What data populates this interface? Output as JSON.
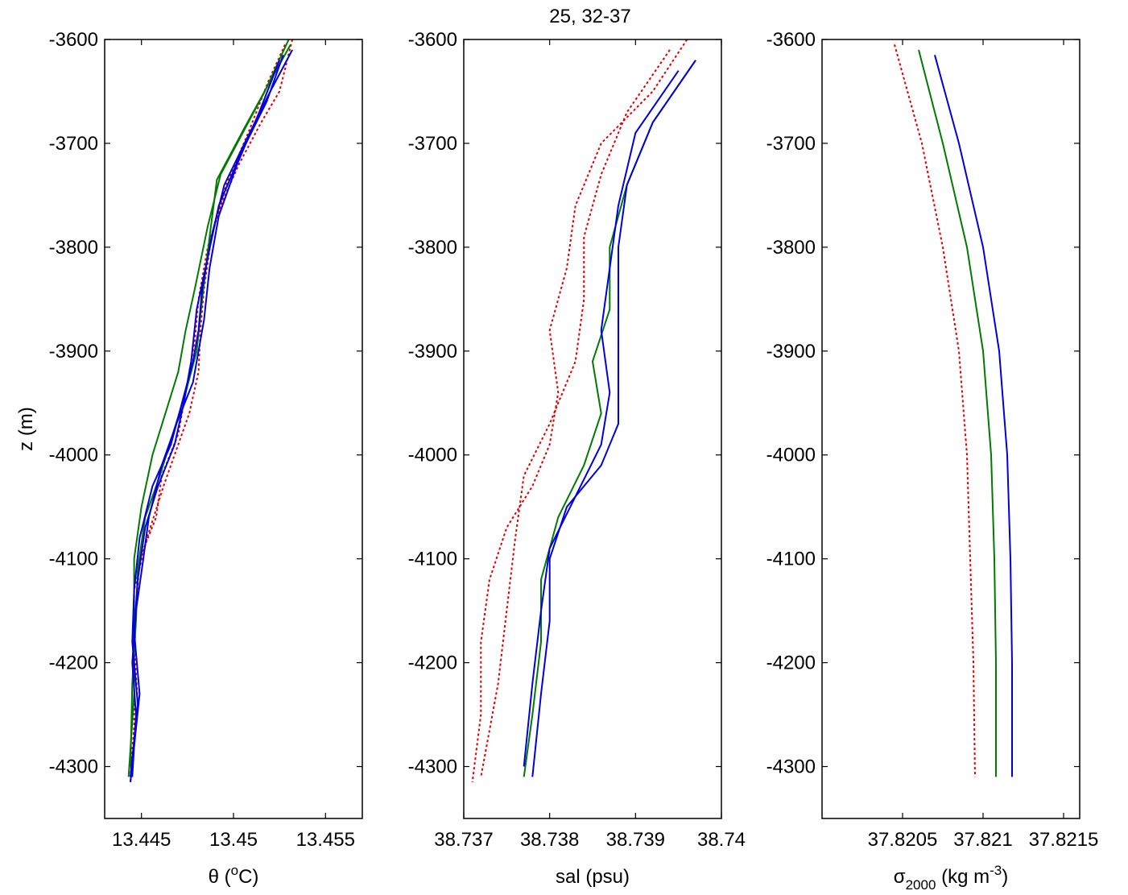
{
  "figure": {
    "title": "25, 32-37"
  },
  "chart_data": [
    {
      "type": "line",
      "panel": "temperature",
      "xlabel": "θ (°C)",
      "xlabel_parts": {
        "symbol": "θ (",
        "sup": "o",
        "tail": "C)"
      },
      "ylabel": "z (m)",
      "xlim": [
        13.443,
        13.457
      ],
      "ylim": [
        -4350,
        -3600
      ],
      "xticks": [
        13.445,
        13.45,
        13.455
      ],
      "xtick_labels": [
        "13.445",
        "13.45",
        "13.455"
      ],
      "yticks": [
        -3600,
        -3700,
        -3800,
        -3900,
        -4000,
        -4100,
        -4200,
        -4300
      ],
      "ytick_labels": [
        "-3600",
        "-3700",
        "-3800",
        "-3900",
        "-4000",
        "-4100",
        "-4200",
        "-4300"
      ],
      "grid": false,
      "series": [
        {
          "color": "#dd0000",
          "style": "dotted",
          "x": [
            13.4532,
            13.4525,
            13.4515,
            13.4503,
            13.4493,
            13.4486,
            13.4481,
            13.4479,
            13.4477,
            13.4474,
            13.447,
            13.4461,
            13.4458,
            13.4449,
            13.4447,
            13.4446,
            13.4446,
            13.4444
          ],
          "y": [
            -3600,
            -3650,
            -3680,
            -3720,
            -3760,
            -3800,
            -3850,
            -3890,
            -3910,
            -3940,
            -3980,
            -4020,
            -4060,
            -4100,
            -4150,
            -4200,
            -4260,
            -4310
          ]
        },
        {
          "color": "#dd0000",
          "style": "dotted",
          "x": [
            13.4528,
            13.4519,
            13.4508,
            13.4496,
            13.4488,
            13.4484,
            13.4482,
            13.4481,
            13.4476,
            13.447,
            13.4462,
            13.4453,
            13.4446,
            13.4446,
            13.4448,
            13.4444
          ],
          "y": [
            -3605,
            -3640,
            -3690,
            -3740,
            -3790,
            -3840,
            -3880,
            -3920,
            -3960,
            -3990,
            -4030,
            -4080,
            -4130,
            -4180,
            -4240,
            -4315
          ]
        },
        {
          "color": "#007a00",
          "style": "solid",
          "x": [
            13.453,
            13.4517,
            13.4505,
            13.4493,
            13.4486,
            13.4479,
            13.4474,
            13.447,
            13.4463,
            13.4456,
            13.445,
            13.4446,
            13.4446,
            13.4446,
            13.4443
          ],
          "y": [
            -3600,
            -3650,
            -3690,
            -3730,
            -3780,
            -3840,
            -3880,
            -3920,
            -3960,
            -4000,
            -4050,
            -4100,
            -4150,
            -4230,
            -4310
          ]
        },
        {
          "color": "#007a00",
          "style": "solid",
          "x": [
            13.4531,
            13.452,
            13.4506,
            13.4491,
            13.4487,
            13.4483,
            13.448,
            13.4474,
            13.4467,
            13.446,
            13.4452,
            13.4448,
            13.4447,
            13.4445,
            13.4444
          ],
          "y": [
            -3605,
            -3640,
            -3685,
            -3735,
            -3790,
            -3850,
            -3900,
            -3940,
            -3980,
            -4020,
            -4060,
            -4110,
            -4160,
            -4220,
            -4300
          ]
        },
        {
          "color": "#0000dd",
          "style": "solid",
          "x": [
            13.4532,
            13.452,
            13.4506,
            13.4495,
            13.4488,
            13.4483,
            13.4481,
            13.4478,
            13.4472,
            13.4466,
            13.4456,
            13.4449,
            13.4446,
            13.4445,
            13.4448,
            13.4444
          ],
          "y": [
            -3610,
            -3650,
            -3700,
            -3740,
            -3790,
            -3840,
            -3880,
            -3910,
            -3950,
            -3990,
            -4030,
            -4080,
            -4130,
            -4180,
            -4240,
            -4310
          ]
        },
        {
          "color": "#0000dd",
          "style": "solid",
          "x": [
            13.4527,
            13.4518,
            13.4504,
            13.4492,
            13.4486,
            13.448,
            13.4477,
            13.4473,
            13.4468,
            13.4459,
            13.4452,
            13.4448,
            13.4446,
            13.4449,
            13.4444
          ],
          "y": [
            -3615,
            -3660,
            -3710,
            -3760,
            -3810,
            -3860,
            -3910,
            -3950,
            -3990,
            -4030,
            -4070,
            -4120,
            -4170,
            -4230,
            -4315
          ]
        },
        {
          "color": "#0000dd",
          "style": "solid",
          "x": [
            13.4525,
            13.4514,
            13.4502,
            13.4492,
            13.4487,
            13.4484,
            13.4478,
            13.4469,
            13.4461,
            13.4454,
            13.4451,
            13.4447,
            13.4445,
            13.4447,
            13.4445
          ],
          "y": [
            -3620,
            -3670,
            -3720,
            -3770,
            -3820,
            -3870,
            -3930,
            -3970,
            -4010,
            -4060,
            -4100,
            -4150,
            -4200,
            -4250,
            -4310
          ]
        }
      ]
    },
    {
      "type": "line",
      "panel": "salinity",
      "xlabel": "sal (psu)",
      "xlim": [
        38.737,
        38.74
      ],
      "ylim": [
        -4350,
        -3600
      ],
      "xticks": [
        38.737,
        38.738,
        38.739,
        38.74
      ],
      "xtick_labels": [
        "38.737",
        "38.738",
        "38.739",
        "38.74"
      ],
      "yticks": [
        -3600,
        -3700,
        -3800,
        -3900,
        -4000,
        -4100,
        -4200,
        -4300
      ],
      "ytick_labels": [
        "-3600",
        "-3700",
        "-3800",
        "-3900",
        "-4000",
        "-4100",
        "-4200",
        "-4300"
      ],
      "grid": false,
      "series": [
        {
          "color": "#dd0000",
          "style": "dotted",
          "x": [
            38.7396,
            38.7392,
            38.7386,
            38.7383,
            38.7382,
            38.738,
            38.7381,
            38.738,
            38.7378,
            38.7375,
            38.7373,
            38.7372,
            38.7372,
            38.7371
          ],
          "y": [
            -3600,
            -3650,
            -3700,
            -3760,
            -3820,
            -3880,
            -3940,
            -3990,
            -4030,
            -4070,
            -4120,
            -4180,
            -4250,
            -4315
          ]
        },
        {
          "color": "#dd0000",
          "style": "dotted",
          "x": [
            38.7394,
            38.7389,
            38.7386,
            38.7384,
            38.7384,
            38.7383,
            38.738,
            38.7377,
            38.7376,
            38.7375,
            38.7374,
            38.7372
          ],
          "y": [
            -3610,
            -3670,
            -3730,
            -3790,
            -3850,
            -3910,
            -3970,
            -4020,
            -4080,
            -4150,
            -4220,
            -4310
          ]
        },
        {
          "color": "#007a00",
          "style": "solid",
          "x": [
            38.7397,
            38.7392,
            38.7389,
            38.7387,
            38.7387,
            38.7385,
            38.7386,
            38.7384,
            38.7381,
            38.7379,
            38.7379,
            38.7378,
            38.7377
          ],
          "y": [
            -3620,
            -3680,
            -3740,
            -3800,
            -3860,
            -3910,
            -3960,
            -4010,
            -4060,
            -4120,
            -4180,
            -4250,
            -4310
          ]
        },
        {
          "color": "#0000dd",
          "style": "solid",
          "x": [
            38.7397,
            38.7392,
            38.7389,
            38.7388,
            38.7388,
            38.7388,
            38.7388,
            38.7386,
            38.7382,
            38.738,
            38.738,
            38.7379,
            38.7378
          ],
          "y": [
            -3620,
            -3680,
            -3740,
            -3800,
            -3860,
            -3920,
            -3970,
            -4010,
            -4050,
            -4100,
            -4160,
            -4230,
            -4310
          ]
        },
        {
          "color": "#0000dd",
          "style": "solid",
          "x": [
            38.7395,
            38.739,
            38.7388,
            38.7387,
            38.7386,
            38.7387,
            38.7386,
            38.7383,
            38.738,
            38.7379,
            38.7378,
            38.7377
          ],
          "y": [
            -3630,
            -3690,
            -3760,
            -3820,
            -3880,
            -3940,
            -3990,
            -4040,
            -4090,
            -4150,
            -4220,
            -4300
          ]
        }
      ]
    },
    {
      "type": "line",
      "panel": "density",
      "xlabel": "σ2000 (kg m-3)",
      "xlabel_parts": {
        "symbol": "σ",
        "sub": "2000",
        "unit": " (kg m",
        "sup": "-3",
        "tail": ")"
      },
      "xlim": [
        37.82,
        37.8216
      ],
      "ylim": [
        -4350,
        -3600
      ],
      "xticks": [
        37.8205,
        37.821,
        37.8215
      ],
      "xtick_labels": [
        "37.8205",
        "37.821",
        "37.8215"
      ],
      "yticks": [
        -3600,
        -3700,
        -3800,
        -3900,
        -4000,
        -4100,
        -4200,
        -4300
      ],
      "ytick_labels": [
        "-3600",
        "-3700",
        "-3800",
        "-3900",
        "-4000",
        "-4100",
        "-4200",
        "-4300"
      ],
      "grid": false,
      "series": [
        {
          "color": "#dd0000",
          "style": "dotted",
          "x": [
            37.82045,
            37.82062,
            37.82075,
            37.82085,
            37.8209,
            37.82092,
            37.82094,
            37.82095
          ],
          "y": [
            -3605,
            -3700,
            -3800,
            -3900,
            -4000,
            -4100,
            -4200,
            -4310
          ]
        },
        {
          "color": "#007a00",
          "style": "solid",
          "x": [
            37.8206,
            37.82075,
            37.8209,
            37.821,
            37.82105,
            37.82107,
            37.82108,
            37.82108
          ],
          "y": [
            -3610,
            -3700,
            -3800,
            -3900,
            -4000,
            -4100,
            -4200,
            -4310
          ]
        },
        {
          "color": "#0000dd",
          "style": "solid",
          "x": [
            37.8207,
            37.82085,
            37.821,
            37.8211,
            37.82115,
            37.82117,
            37.82118,
            37.82118
          ],
          "y": [
            -3615,
            -3700,
            -3800,
            -3900,
            -4000,
            -4100,
            -4200,
            -4310
          ]
        }
      ]
    }
  ]
}
